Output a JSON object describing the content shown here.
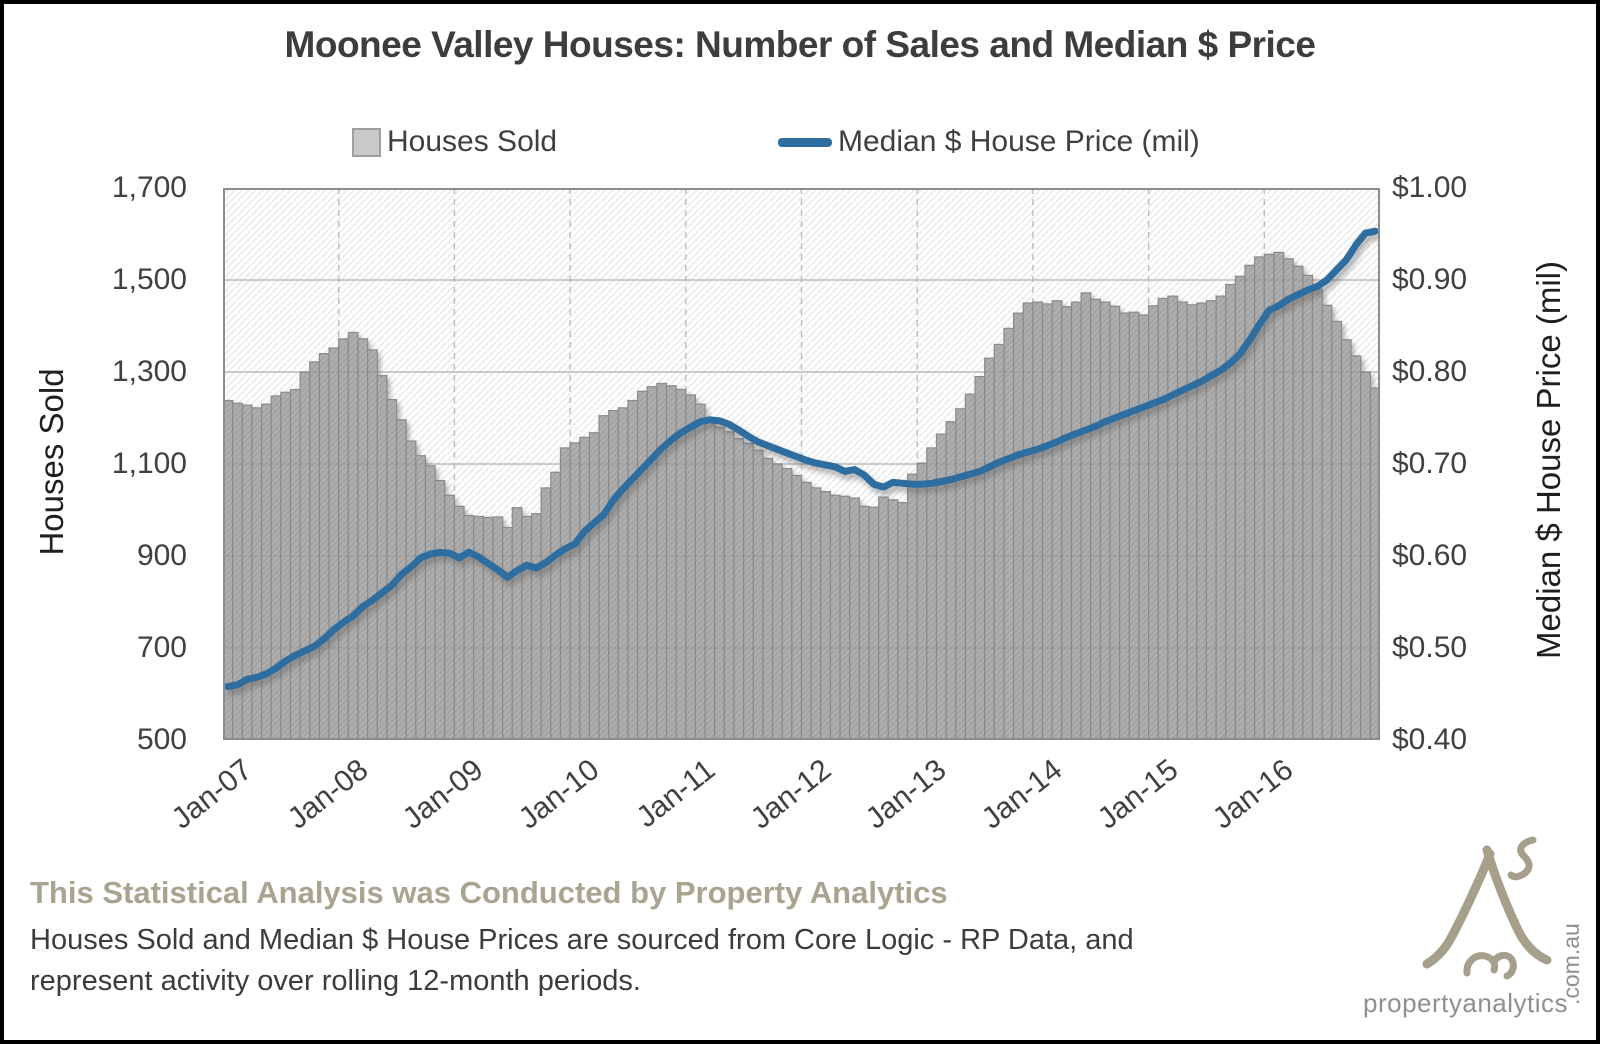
{
  "title": "Moonee Valley Houses: Number of Sales and Median $ Price",
  "legend": [
    {
      "label": "Houses Sold"
    },
    {
      "label": "Median $ House Price (mil)"
    }
  ],
  "left_axis": {
    "title": "Houses Sold",
    "ticks": [
      {
        "label": "1,700",
        "value": 1700
      },
      {
        "label": "1,500",
        "value": 1500
      },
      {
        "label": "1,300",
        "value": 1300
      },
      {
        "label": "1,100",
        "value": 1100
      },
      {
        "label": "900",
        "value": 900
      },
      {
        "label": "700",
        "value": 700
      },
      {
        "label": "500",
        "value": 500
      }
    ]
  },
  "right_axis": {
    "title": "Median $ House Price (mil)",
    "ticks": [
      {
        "label": "$1.00",
        "value": 1.0
      },
      {
        "label": "$0.90",
        "value": 0.9
      },
      {
        "label": "$0.80",
        "value": 0.8
      },
      {
        "label": "$0.70",
        "value": 0.7
      },
      {
        "label": "$0.60",
        "value": 0.6
      },
      {
        "label": "$0.50",
        "value": 0.5
      },
      {
        "label": "$0.40",
        "value": 0.4
      }
    ]
  },
  "x_axis": {
    "ticks": [
      {
        "label": "Jan-07",
        "month_index": 0
      },
      {
        "label": "Jan-08",
        "month_index": 12
      },
      {
        "label": "Jan-09",
        "month_index": 24
      },
      {
        "label": "Jan-10",
        "month_index": 36
      },
      {
        "label": "Jan-11",
        "month_index": 48
      },
      {
        "label": "Jan-12",
        "month_index": 60
      },
      {
        "label": "Jan-13",
        "month_index": 72
      },
      {
        "label": "Jan-14",
        "month_index": 84
      },
      {
        "label": "Jan-15",
        "month_index": 96
      },
      {
        "label": "Jan-16",
        "month_index": 108
      }
    ]
  },
  "chart_data": {
    "type": "bar+line",
    "x_start": "Jan-07",
    "x_end": "Dec-16",
    "x_frequency": "monthly",
    "left_ylim": [
      500,
      1700
    ],
    "right_ylim": [
      0.4,
      1.0
    ],
    "grid": true,
    "legend_position": "top",
    "series": [
      {
        "name": "Houses Sold",
        "type": "bar",
        "axis": "left",
        "color": "#adadad",
        "values": [
          1238,
          1232,
          1228,
          1222,
          1230,
          1248,
          1256,
          1262,
          1300,
          1322,
          1340,
          1352,
          1372,
          1386,
          1372,
          1348,
          1292,
          1240,
          1196,
          1150,
          1118,
          1096,
          1064,
          1032,
          1008,
          988,
          986,
          984,
          985,
          962,
          1005,
          986,
          992,
          1048,
          1082,
          1135,
          1146,
          1158,
          1168,
          1205,
          1216,
          1222,
          1238,
          1258,
          1268,
          1275,
          1270,
          1262,
          1250,
          1230,
          1200,
          1180,
          1170,
          1155,
          1145,
          1130,
          1112,
          1100,
          1090,
          1075,
          1060,
          1048,
          1040,
          1032,
          1030,
          1026,
          1008,
          1006,
          1028,
          1022,
          1016,
          1078,
          1102,
          1135,
          1165,
          1192,
          1220,
          1252,
          1290,
          1330,
          1360,
          1395,
          1428,
          1450,
          1452,
          1448,
          1455,
          1442,
          1452,
          1472,
          1458,
          1452,
          1443,
          1428,
          1430,
          1424,
          1444,
          1460,
          1465,
          1452,
          1446,
          1450,
          1455,
          1465,
          1490,
          1508,
          1532,
          1550,
          1556,
          1560,
          1546,
          1530,
          1510,
          1480,
          1445,
          1410,
          1370,
          1335,
          1300,
          1265
        ]
      },
      {
        "name": "Median $ House Price (mil)",
        "type": "line",
        "axis": "right",
        "color": "#2e6d9f",
        "values": [
          0.458,
          0.46,
          0.466,
          0.468,
          0.472,
          0.478,
          0.486,
          0.492,
          0.497,
          0.502,
          0.51,
          0.52,
          0.528,
          0.535,
          0.545,
          0.552,
          0.56,
          0.568,
          0.58,
          0.588,
          0.598,
          0.602,
          0.604,
          0.603,
          0.598,
          0.604,
          0.599,
          0.592,
          0.585,
          0.577,
          0.584,
          0.59,
          0.587,
          0.593,
          0.601,
          0.608,
          0.613,
          0.627,
          0.636,
          0.645,
          0.661,
          0.673,
          0.684,
          0.695,
          0.706,
          0.717,
          0.726,
          0.734,
          0.74,
          0.746,
          0.748,
          0.747,
          0.743,
          0.737,
          0.73,
          0.724,
          0.72,
          0.716,
          0.712,
          0.708,
          0.704,
          0.701,
          0.699,
          0.697,
          0.692,
          0.694,
          0.688,
          0.678,
          0.675,
          0.68,
          0.679,
          0.678,
          0.678,
          0.679,
          0.681,
          0.683,
          0.686,
          0.689,
          0.692,
          0.697,
          0.702,
          0.706,
          0.71,
          0.713,
          0.716,
          0.72,
          0.724,
          0.729,
          0.733,
          0.737,
          0.741,
          0.746,
          0.75,
          0.754,
          0.758,
          0.762,
          0.766,
          0.77,
          0.775,
          0.78,
          0.785,
          0.79,
          0.796,
          0.802,
          0.81,
          0.82,
          0.835,
          0.852,
          0.867,
          0.872,
          0.879,
          0.884,
          0.889,
          0.893,
          0.9,
          0.911,
          0.922,
          0.938,
          0.951,
          0.953
        ]
      }
    ]
  },
  "footer": {
    "heading": "This Statistical Analysis was Conducted by Property Analytics",
    "line1": "Houses Sold and Median $ House Prices are sourced from Core Logic - RP Data, and",
    "line2": "represent activity over rolling 12-month periods."
  },
  "logo": {
    "text": "propertyanalytics",
    "suffix": ".com.au"
  },
  "colors": {
    "accent_line": "#2e6d9f",
    "bar_fill": "#adadad",
    "bar_border": "#8a8a8a",
    "grid": "#c9c9c9",
    "plot_border": "#8c8c8c",
    "title_text": "#3d3d3d",
    "tick_text": "#404040",
    "footer_heading": "#a8a48f",
    "footer_text": "#3c3c3c",
    "logo_mark": "#a59f8b",
    "logo_text": "#8f8f8f"
  }
}
